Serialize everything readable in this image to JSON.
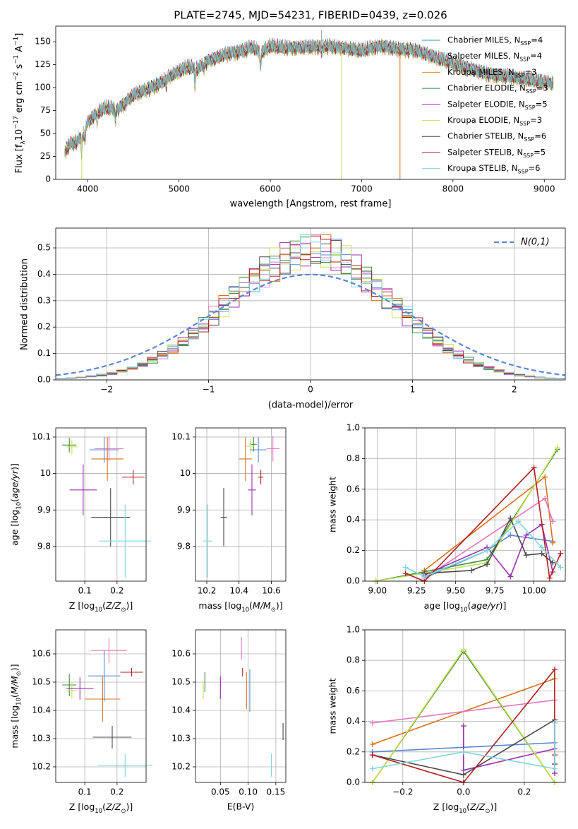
{
  "chart_data": [
    {
      "id": "spectrum",
      "type": "line",
      "title": "PLATE=2745, MJD=54231, FIBERID=0439, z=0.026",
      "xlabel": "wavelength [Angstrom, rest frame]",
      "ylabel": "Flux [f_λ 10^-17 erg cm^-2 s^-1 A^-1]",
      "xlim": [
        3650,
        9230
      ],
      "ylim": [
        0,
        167
      ],
      "xticks": [
        4000,
        5000,
        6000,
        7000,
        8000,
        9000
      ],
      "yticks": [
        0,
        25,
        50,
        75,
        100,
        125,
        150
      ],
      "grid": false,
      "legend_position": "top-right",
      "continuum": [
        [
          3750,
          30
        ],
        [
          3800,
          38
        ],
        [
          3870,
          40
        ],
        [
          3950,
          48
        ],
        [
          4000,
          62
        ],
        [
          4100,
          72
        ],
        [
          4200,
          78
        ],
        [
          4300,
          76
        ],
        [
          4400,
          82
        ],
        [
          4500,
          92
        ],
        [
          4600,
          96
        ],
        [
          4700,
          100
        ],
        [
          4800,
          105
        ],
        [
          4900,
          112
        ],
        [
          5000,
          118
        ],
        [
          5100,
          122
        ],
        [
          5200,
          120
        ],
        [
          5300,
          128
        ],
        [
          5400,
          132
        ],
        [
          5500,
          136
        ],
        [
          5600,
          138
        ],
        [
          5700,
          140
        ],
        [
          5800,
          144
        ],
        [
          5900,
          138
        ],
        [
          6000,
          145
        ],
        [
          6200,
          143
        ],
        [
          6400,
          144
        ],
        [
          6600,
          145
        ],
        [
          6800,
          143
        ],
        [
          7000,
          140
        ],
        [
          7200,
          145
        ],
        [
          7400,
          142
        ],
        [
          7600,
          140
        ],
        [
          7800,
          133
        ],
        [
          8000,
          126
        ],
        [
          8200,
          120
        ],
        [
          8400,
          114
        ],
        [
          8600,
          112
        ],
        [
          8800,
          109
        ],
        [
          9000,
          106
        ],
        [
          9100,
          104
        ]
      ],
      "absorption_lines": [
        [
          3934,
          18
        ],
        [
          3969,
          14
        ],
        [
          4102,
          8
        ],
        [
          4304,
          12
        ],
        [
          4340,
          6
        ],
        [
          4861,
          7
        ],
        [
          5175,
          18
        ],
        [
          5270,
          6
        ],
        [
          5892,
          18
        ],
        [
          6563,
          8
        ]
      ],
      "artifacts": [
        [
          3935,
          "#c8e055"
        ],
        [
          6780,
          "#c8e055"
        ],
        [
          7420,
          "#d06a1a"
        ],
        [
          6560,
          "#aaaaaa"
        ]
      ],
      "series": [
        {
          "name": "Chabrier MILES",
          "nssp": "4",
          "color": "#2a9d8f"
        },
        {
          "name": "Salpeter MILES",
          "nssp": "4",
          "color": "#e377c2"
        },
        {
          "name": "Kroupa MILES",
          "nssp": "3",
          "color": "#d9901a"
        },
        {
          "name": "Chabrier ELODIE",
          "nssp": "3",
          "color": "#3d8c3d"
        },
        {
          "name": "Salpeter ELODIE",
          "nssp": "5",
          "color": "#9b30b0"
        },
        {
          "name": "Kroupa ELODIE",
          "nssp": "3",
          "color": "#d8e060"
        },
        {
          "name": "Chabrier STELIB",
          "nssp": "6",
          "color": "#4a4a4a"
        },
        {
          "name": "Salpeter STELIB",
          "nssp": "5",
          "color": "#b21f1f"
        },
        {
          "name": "Kroupa STELIB",
          "nssp": "6",
          "color": "#7fd6df"
        }
      ]
    },
    {
      "id": "residuals",
      "type": "histogram",
      "xlabel": "(data-model)/error",
      "ylabel": "Normed distribution",
      "xlim": [
        -2.5,
        2.5
      ],
      "ylim": [
        0,
        0.575
      ],
      "xticks": [
        -2,
        -1,
        0,
        1,
        2
      ],
      "yticks": [
        0.0,
        0.1,
        0.2,
        0.3,
        0.4,
        0.5
      ],
      "grid": true,
      "legend_position": "top-right",
      "legend": "N(0,1)",
      "reference_color": "#5b87d6",
      "bin_width": 0.1,
      "bin_start": -2.5,
      "colors": [
        "#5b87d6",
        "#d9701a",
        "#e377c2",
        "#3d8c3d",
        "#9b30b0",
        "#c8e055",
        "#4a4a4a",
        "#b21f1f",
        "#7fd6df"
      ]
    },
    {
      "id": "age_vs_z",
      "type": "errorbar",
      "xlabel": "Z [log10(Z/Z⊙)]",
      "ylabel": "age  [log10(age/yr)]",
      "xlim": [
        0.01,
        0.29
      ],
      "ylim": [
        9.705,
        10.125
      ],
      "xticks": [
        0.1,
        0.2
      ],
      "yticks": [
        9.8,
        9.9,
        10.0,
        10.1
      ],
      "grid": true,
      "points": [
        {
          "x": 0.052,
          "xerr": 0.022,
          "y": 10.078,
          "yerr": 0.02,
          "color": "#3d8c3d"
        },
        {
          "x": 0.06,
          "xerr": 0.018,
          "y": 10.073,
          "yerr": 0.02,
          "color": "#c8e055"
        },
        {
          "x": 0.16,
          "xerr": 0.045,
          "y": 10.065,
          "yerr": 0.035,
          "color": "#5b87d6"
        },
        {
          "x": 0.175,
          "xerr": 0.045,
          "y": 10.068,
          "yerr": 0.035,
          "color": "#e377c2"
        },
        {
          "x": 0.17,
          "xerr": 0.05,
          "y": 10.04,
          "yerr": 0.06,
          "color": "#d9701a"
        },
        {
          "x": 0.095,
          "xerr": 0.042,
          "y": 9.955,
          "yerr": 0.07,
          "color": "#9b30b0"
        },
        {
          "x": 0.25,
          "xerr": 0.035,
          "y": 9.99,
          "yerr": 0.02,
          "color": "#b21f1f"
        },
        {
          "x": 0.18,
          "xerr": 0.06,
          "y": 9.88,
          "yerr": 0.08,
          "color": "#4a4a4a"
        },
        {
          "x": 0.225,
          "xerr": 0.08,
          "y": 9.815,
          "yerr": 0.1,
          "color": "#7fd6df"
        }
      ]
    },
    {
      "id": "age_vs_mass",
      "type": "errorbar",
      "xlabel": "mass [log10(M/M⊙)]",
      "ylabel": "",
      "xlim": [
        10.13,
        10.69
      ],
      "ylim": [
        9.705,
        10.125
      ],
      "xticks": [
        10.2,
        10.4,
        10.6
      ],
      "yticks": [
        9.8,
        9.9,
        10.0,
        10.1
      ],
      "grid": true,
      "points": [
        {
          "x": 10.49,
          "xerr": 0.02,
          "y": 10.08,
          "yerr": 0.02,
          "color": "#3d8c3d"
        },
        {
          "x": 10.47,
          "xerr": 0.025,
          "y": 10.075,
          "yerr": 0.02,
          "color": "#c8e055"
        },
        {
          "x": 10.52,
          "xerr": 0.05,
          "y": 10.065,
          "yerr": 0.035,
          "color": "#5b87d6"
        },
        {
          "x": 10.61,
          "xerr": 0.04,
          "y": 10.068,
          "yerr": 0.035,
          "color": "#e377c2"
        },
        {
          "x": 10.44,
          "xerr": 0.04,
          "y": 10.04,
          "yerr": 0.06,
          "color": "#d9701a"
        },
        {
          "x": 10.48,
          "xerr": 0.025,
          "y": 9.955,
          "yerr": 0.07,
          "color": "#9b30b0"
        },
        {
          "x": 10.535,
          "xerr": 0.015,
          "y": 9.99,
          "yerr": 0.02,
          "color": "#b21f1f"
        },
        {
          "x": 10.305,
          "xerr": 0.02,
          "y": 9.88,
          "yerr": 0.08,
          "color": "#4a4a4a"
        },
        {
          "x": 10.205,
          "xerr": 0.03,
          "y": 9.815,
          "yerr": 0.1,
          "color": "#7fd6df"
        }
      ]
    },
    {
      "id": "weight_vs_age",
      "type": "line",
      "xlabel": "age  [log10(age/yr)]",
      "ylabel": "mass weight",
      "xlim": [
        8.92,
        10.2
      ],
      "ylim": [
        0,
        1.0
      ],
      "xticks": [
        9.0,
        9.25,
        9.5,
        9.75,
        10.0
      ],
      "xtick_labels": [
        "9.00",
        "9.25",
        "9.50",
        "9.75",
        "10.00"
      ],
      "yticks": [
        0.0,
        0.2,
        0.4,
        0.6,
        0.8,
        1.0
      ],
      "grid": true,
      "series": [
        {
          "color": "#5b87d6",
          "x": [
            9.3,
            9.7,
            9.85,
            10.12
          ],
          "y": [
            0.02,
            0.2,
            0.3,
            0.26
          ]
        },
        {
          "color": "#d9701a",
          "x": [
            9.3,
            10.07,
            10.12
          ],
          "y": [
            0.07,
            0.68,
            0.25
          ]
        },
        {
          "color": "#e377c2",
          "x": [
            9.3,
            10.07,
            10.12
          ],
          "y": [
            0.02,
            0.54,
            0.39
          ]
        },
        {
          "color": "#3d8c3d",
          "x": [
            8.99,
            9.7,
            10.15
          ],
          "y": [
            0.0,
            0.14,
            0.86
          ]
        },
        {
          "color": "#9b30b0",
          "x": [
            9.3,
            9.7,
            9.85,
            9.95,
            10.05,
            10.12
          ],
          "y": [
            0.04,
            0.22,
            0.03,
            0.3,
            0.37,
            0.06
          ]
        },
        {
          "color": "#c8e055",
          "x": [
            8.99,
            9.7,
            10.15
          ],
          "y": [
            0.0,
            0.12,
            0.87
          ]
        },
        {
          "color": "#4a4a4a",
          "x": [
            9.3,
            9.6,
            9.7,
            9.85,
            9.95,
            10.05,
            10.12
          ],
          "y": [
            0.05,
            0.07,
            0.11,
            0.41,
            0.17,
            0.18,
            0.12
          ]
        },
        {
          "color": "#b21f1f",
          "x": [
            9.18,
            9.3,
            10.0,
            10.1,
            10.17
          ],
          "y": [
            0.05,
            0.0,
            0.74,
            0.02,
            0.18
          ]
        },
        {
          "color": "#7fd6df",
          "x": [
            9.18,
            9.3,
            9.7,
            9.9,
            10.05,
            10.17
          ],
          "y": [
            0.09,
            0.03,
            0.2,
            0.39,
            0.22,
            0.09
          ]
        }
      ]
    },
    {
      "id": "mass_vs_z",
      "type": "errorbar",
      "xlabel": "Z [log10(Z/Z⊙)]",
      "ylabel": "mass [log10(M/M⊙)]",
      "xlim": [
        0.01,
        0.29
      ],
      "ylim": [
        10.145,
        10.685
      ],
      "xticks": [
        0.1,
        0.2
      ],
      "yticks": [
        10.2,
        10.3,
        10.4,
        10.5,
        10.6
      ],
      "grid": true,
      "points": [
        {
          "x": 0.052,
          "xerr": 0.022,
          "y": 10.49,
          "yerr": 0.04,
          "color": "#3d8c3d"
        },
        {
          "x": 0.06,
          "xerr": 0.018,
          "y": 10.47,
          "yerr": 0.03,
          "color": "#c8e055"
        },
        {
          "x": 0.085,
          "xerr": 0.042,
          "y": 10.478,
          "yerr": 0.04,
          "color": "#9b30b0"
        },
        {
          "x": 0.16,
          "xerr": 0.05,
          "y": 10.522,
          "yerr": 0.09,
          "color": "#5b87d6"
        },
        {
          "x": 0.175,
          "xerr": 0.055,
          "y": 10.612,
          "yerr": 0.045,
          "color": "#e377c2"
        },
        {
          "x": 0.155,
          "xerr": 0.055,
          "y": 10.44,
          "yerr": 0.08,
          "color": "#d9701a"
        },
        {
          "x": 0.245,
          "xerr": 0.035,
          "y": 10.535,
          "yerr": 0.015,
          "color": "#b21f1f"
        },
        {
          "x": 0.185,
          "xerr": 0.06,
          "y": 10.305,
          "yerr": 0.04,
          "color": "#4a4a4a"
        },
        {
          "x": 0.225,
          "xerr": 0.085,
          "y": 10.205,
          "yerr": 0.04,
          "color": "#7fd6df"
        }
      ]
    },
    {
      "id": "mass_vs_ebv",
      "type": "errorbar",
      "xlabel": "E(B-V)",
      "ylabel": "",
      "xlim": [
        0.005,
        0.168
      ],
      "ylim": [
        10.145,
        10.685
      ],
      "xticks": [
        0.05,
        0.1,
        0.15
      ],
      "xtick_labels": [
        "0.05",
        "0.10",
        "0.15"
      ],
      "yticks": [
        10.2,
        10.3,
        10.4,
        10.5,
        10.6
      ],
      "grid": true,
      "points": [
        {
          "x": 0.022,
          "xerr": 0,
          "y": 10.5,
          "yerr": 0.035,
          "color": "#3d8c3d"
        },
        {
          "x": 0.019,
          "xerr": 0,
          "y": 10.47,
          "yerr": 0.03,
          "color": "#c8e055"
        },
        {
          "x": 0.05,
          "xerr": 0,
          "y": 10.48,
          "yerr": 0.04,
          "color": "#9b30b0"
        },
        {
          "x": 0.103,
          "xerr": 0,
          "y": 10.47,
          "yerr": 0.075,
          "color": "#5b87d6"
        },
        {
          "x": 0.088,
          "xerr": 0,
          "y": 10.62,
          "yerr": 0.04,
          "color": "#e377c2"
        },
        {
          "x": 0.097,
          "xerr": 0,
          "y": 10.47,
          "yerr": 0.065,
          "color": "#d9701a"
        },
        {
          "x": 0.09,
          "xerr": 0,
          "y": 10.535,
          "yerr": 0.015,
          "color": "#b21f1f"
        },
        {
          "x": 0.163,
          "xerr": 0,
          "y": 10.325,
          "yerr": 0.03,
          "color": "#4a4a4a"
        },
        {
          "x": 0.142,
          "xerr": 0,
          "y": 10.205,
          "yerr": 0.04,
          "color": "#7fd6df"
        }
      ]
    },
    {
      "id": "weight_vs_z",
      "type": "line",
      "xlabel": "Z [log10(Z/Z⊙)]",
      "ylabel": "mass weight",
      "xlim": [
        -0.325,
        0.335
      ],
      "ylim": [
        0,
        1.0
      ],
      "xticks": [
        -0.2,
        0.0,
        0.2
      ],
      "xtick_labels": [
        "−0.2",
        "0.0",
        "0.2"
      ],
      "yticks": [
        0.0,
        0.2,
        0.4,
        0.6,
        0.8,
        1.0
      ],
      "grid": true,
      "series": [
        {
          "color": "#5b87d6",
          "x": [
            -0.3,
            0.3
          ],
          "y": [
            0.2,
            0.26
          ]
        },
        {
          "color": "#d9701a",
          "x": [
            -0.3,
            0.3
          ],
          "y": [
            0.25,
            0.68
          ]
        },
        {
          "color": "#e377c2",
          "x": [
            -0.3,
            0.3
          ],
          "y": [
            0.39,
            0.54
          ]
        },
        {
          "color": "#3d8c3d",
          "x": [
            -0.3,
            0.0,
            0.3
          ],
          "y": [
            0.0,
            0.86,
            0.0
          ]
        },
        {
          "color": "#9b30b0",
          "x": [
            0.0,
            0.0,
            0.3,
            0.3
          ],
          "y": [
            0.37,
            0.08,
            0.22,
            0.06
          ]
        },
        {
          "color": "#c8e055",
          "x": [
            -0.3,
            0.0,
            0.3
          ],
          "y": [
            0.0,
            0.87,
            0.0
          ]
        },
        {
          "color": "#4a4a4a",
          "x": [
            -0.3,
            0.0,
            0.3,
            0.3
          ],
          "y": [
            0.18,
            0.05,
            0.41,
            0.12
          ]
        },
        {
          "color": "#b21f1f",
          "x": [
            -0.3,
            0.0,
            0.3,
            0.3
          ],
          "y": [
            0.18,
            0.0,
            0.74,
            0.18
          ]
        },
        {
          "color": "#7fd6df",
          "x": [
            -0.3,
            0.0,
            0.3,
            0.3
          ],
          "y": [
            0.09,
            0.2,
            0.09,
            0.39
          ]
        }
      ]
    }
  ]
}
